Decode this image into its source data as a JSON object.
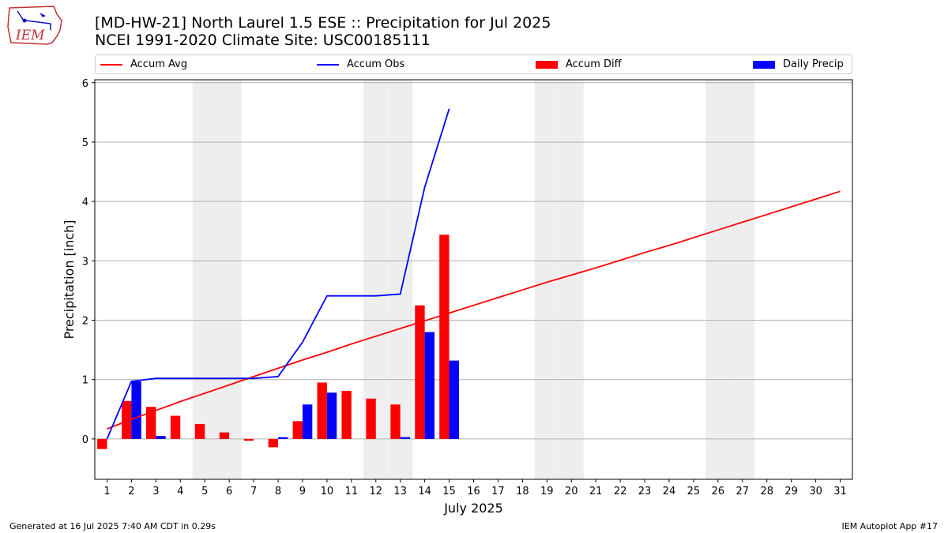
{
  "title_line1": "[MD-HW-21] North Laurel 1.5 ESE :: Precipitation for Jul 2025",
  "title_line2": "NCEI 1991-2020 Climate Site: USC00185111",
  "logo_text": "IEM",
  "footer_left": "Generated at 16 Jul 2025 7:40 AM CDT in 0.29s",
  "footer_right": "IEM Autoplot App #17",
  "colors": {
    "avg": "#ff0000",
    "obs": "#0000ff",
    "diff": "#ff0000",
    "daily": "#0000ff",
    "weekend_shade": "#eeeeee",
    "grid": "#b0b0b0"
  },
  "chart_data": {
    "type": "bar",
    "xlabel": "July 2025",
    "ylabel": "Precipitation [inch]",
    "xlim": [
      0.5,
      31.5
    ],
    "ylim": [
      -0.68,
      6.05
    ],
    "yticks": [
      0,
      1,
      2,
      3,
      4,
      5,
      6
    ],
    "days": [
      1,
      2,
      3,
      4,
      5,
      6,
      7,
      8,
      9,
      10,
      11,
      12,
      13,
      14,
      15,
      16,
      17,
      18,
      19,
      20,
      21,
      22,
      23,
      24,
      25,
      26,
      27,
      28,
      29,
      30,
      31
    ],
    "shaded_days": [
      5,
      6,
      12,
      13,
      19,
      20,
      26,
      27
    ],
    "legend": [
      "Accum Avg",
      "Accum Obs",
      "Accum Diff",
      "Daily Precip"
    ],
    "series": [
      {
        "name": "Accum Avg",
        "kind": "line",
        "x": [
          1,
          2,
          3,
          4,
          5,
          6,
          7,
          8,
          9,
          10,
          11,
          12,
          13,
          14,
          15,
          16,
          17,
          18,
          19,
          20,
          21,
          22,
          23,
          24,
          25,
          26,
          27,
          28,
          29,
          30,
          31
        ],
        "values": [
          0.17,
          0.33,
          0.48,
          0.63,
          0.77,
          0.91,
          1.05,
          1.19,
          1.33,
          1.46,
          1.6,
          1.73,
          1.86,
          1.99,
          2.12,
          2.25,
          2.38,
          2.51,
          2.64,
          2.76,
          2.88,
          3.01,
          3.14,
          3.26,
          3.39,
          3.52,
          3.65,
          3.78,
          3.91,
          4.04,
          4.17
        ]
      },
      {
        "name": "Accum Obs",
        "kind": "line",
        "x": [
          1,
          2,
          3,
          4,
          5,
          6,
          7,
          8,
          9,
          10,
          11,
          12,
          13,
          14,
          15
        ],
        "values": [
          0.0,
          0.97,
          1.02,
          1.02,
          1.02,
          1.02,
          1.02,
          1.05,
          1.63,
          2.41,
          2.41,
          2.41,
          2.44,
          4.24,
          5.56
        ]
      },
      {
        "name": "Accum Diff",
        "kind": "bar",
        "x": [
          1,
          2,
          3,
          4,
          5,
          6,
          7,
          8,
          9,
          10,
          11,
          12,
          13,
          14,
          15
        ],
        "values": [
          -0.17,
          0.64,
          0.54,
          0.39,
          0.25,
          0.11,
          -0.03,
          -0.14,
          0.3,
          0.95,
          0.81,
          0.68,
          0.58,
          2.25,
          3.44
        ]
      },
      {
        "name": "Daily Precip",
        "kind": "bar",
        "x": [
          1,
          2,
          3,
          4,
          5,
          6,
          7,
          8,
          9,
          10,
          11,
          12,
          13,
          14,
          15
        ],
        "values": [
          0.0,
          0.97,
          0.05,
          0.0,
          0.0,
          0.0,
          0.0,
          0.03,
          0.58,
          0.78,
          0.0,
          0.0,
          0.03,
          1.8,
          1.32
        ]
      }
    ]
  }
}
